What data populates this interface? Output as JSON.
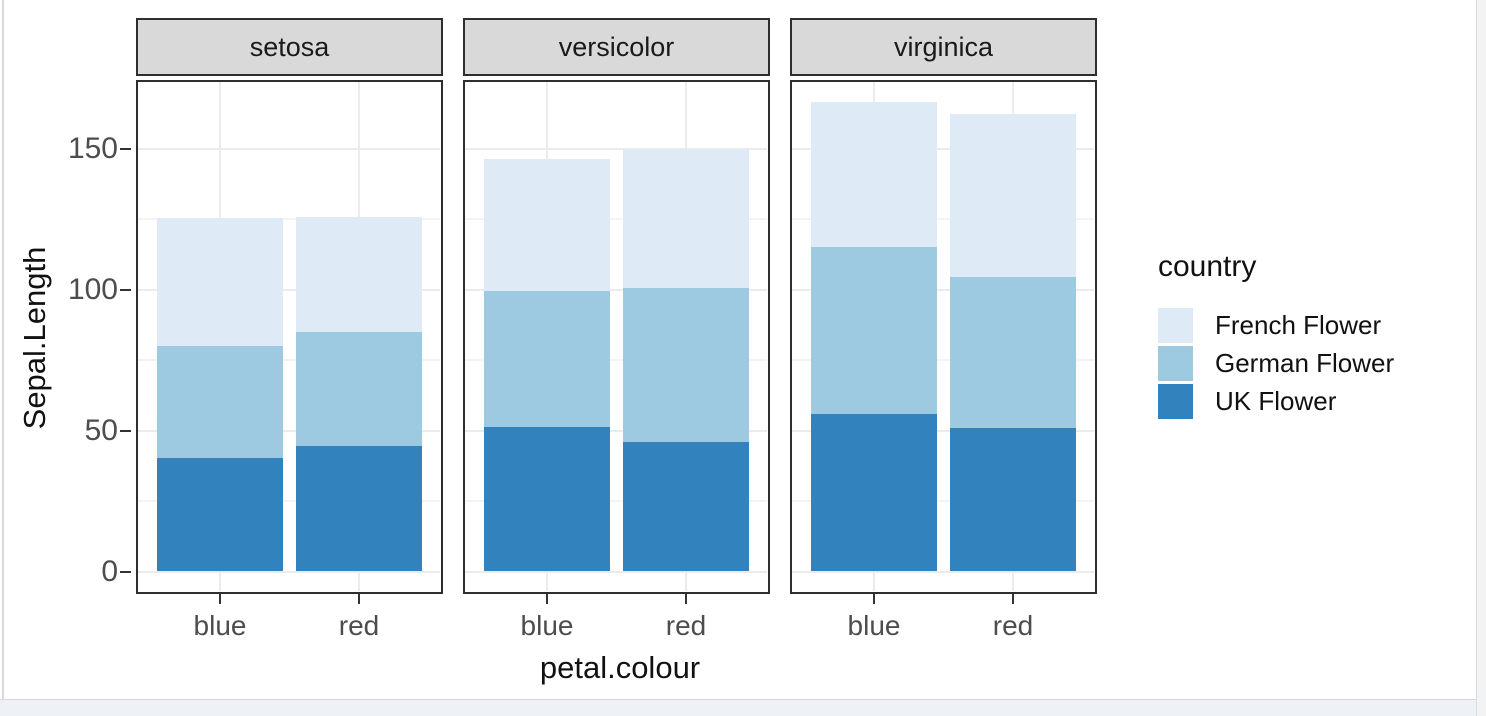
{
  "chart_data": {
    "type": "bar",
    "variant": "stacked",
    "xlabel": "petal.colour",
    "ylabel": "Sepal.Length",
    "facets": [
      "setosa",
      "versicolor",
      "virginica"
    ],
    "categories": [
      "blue",
      "red"
    ],
    "y_ticks": [
      0,
      50,
      100,
      150
    ],
    "ylim": [
      0,
      173
    ],
    "grid": "major+minor horizontal, major vertical at category centers",
    "legend_position": "right",
    "legend": {
      "title": "country",
      "entries": [
        {
          "label": "French Flower",
          "color": "#DEEBF7"
        },
        {
          "label": "German Flower",
          "color": "#9ECAE1"
        },
        {
          "label": "UK Flower",
          "color": "#3182BD"
        }
      ]
    },
    "stack_order_bottom_to_top": [
      "UK Flower",
      "German Flower",
      "French Flower"
    ],
    "series": [
      {
        "name": "UK Flower",
        "color": "#3182BD",
        "values": {
          "setosa": [
            40.3,
            44.4
          ],
          "versicolor": [
            51.4,
            45.9
          ],
          "virginica": [
            55.7,
            51.0
          ]
        }
      },
      {
        "name": "German Flower",
        "color": "#9ECAE1",
        "values": {
          "setosa": [
            39.5,
            40.5
          ],
          "versicolor": [
            48.1,
            54.7
          ],
          "virginica": [
            59.3,
            53.4
          ]
        }
      },
      {
        "name": "French Flower",
        "color": "#DEEBF7",
        "values": {
          "setosa": [
            45.5,
            40.9
          ],
          "versicolor": [
            46.8,
            49.4
          ],
          "virginica": [
            51.6,
            57.7
          ]
        }
      }
    ],
    "stack_totals": {
      "setosa": [
        125.3,
        125.8
      ],
      "versicolor": [
        146.3,
        150.0
      ],
      "virginica": [
        166.6,
        162.1
      ]
    }
  },
  "style": {
    "strip_fill": "#D9D9D9",
    "panel_border": "#2E2E2E",
    "grid_major": "#EBEBEB",
    "grid_minor": "#F3F3F3",
    "tick_label_color": "#4D4D4D",
    "axis_title_color": "#111111"
  }
}
